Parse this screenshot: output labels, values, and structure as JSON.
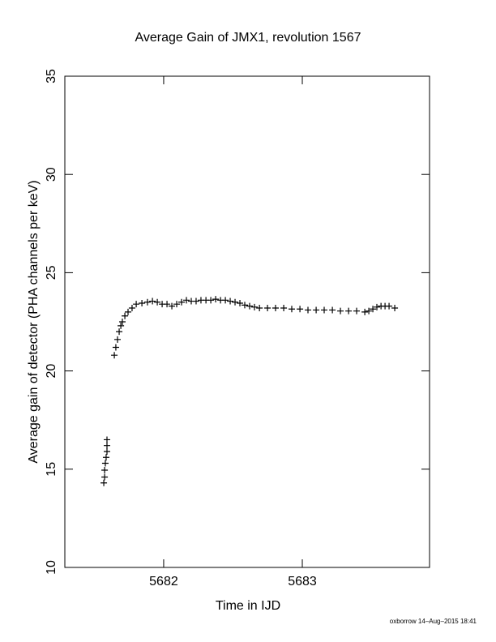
{
  "chart_data": {
    "type": "scatter",
    "title": "Average Gain of JMX1, revolution 1567",
    "x_label": "Time in IJD",
    "y_label": "Average gain of detector (PHA channels per keV)",
    "footer": "oxborrow 14–Aug–2015 18:41",
    "xlim": [
      5681.287,
      5683.918
    ],
    "ylim": [
      10,
      35
    ],
    "xticks": [
      5682,
      5683
    ],
    "yticks": [
      10,
      15,
      20,
      25,
      30,
      35
    ],
    "color": "#000000",
    "marker": "+",
    "x": [
      5681.568,
      5681.574,
      5681.574,
      5681.579,
      5681.585,
      5681.591,
      5681.591,
      5681.591,
      5681.644,
      5681.655,
      5681.667,
      5681.679,
      5681.691,
      5681.702,
      5681.72,
      5681.743,
      5681.772,
      5681.802,
      5681.843,
      5681.883,
      5681.919,
      5681.954,
      5681.989,
      5682.024,
      5682.059,
      5682.094,
      5682.129,
      5682.164,
      5682.199,
      5682.234,
      5682.269,
      5682.305,
      5682.34,
      5682.375,
      5682.41,
      5682.445,
      5682.48,
      5682.515,
      5682.55,
      5682.585,
      5682.62,
      5682.655,
      5682.691,
      5682.749,
      5682.807,
      5682.866,
      5682.924,
      5682.983,
      5683.041,
      5683.1,
      5683.158,
      5683.217,
      5683.275,
      5683.334,
      5683.392,
      5683.451,
      5683.48,
      5683.509,
      5683.538,
      5683.568,
      5683.597,
      5683.626,
      5683.667
    ],
    "values": [
      14.3,
      14.6,
      14.95,
      15.3,
      15.6,
      15.9,
      16.2,
      16.5,
      20.8,
      21.2,
      21.6,
      22.0,
      22.3,
      22.5,
      22.8,
      23.0,
      23.2,
      23.4,
      23.45,
      23.5,
      23.55,
      23.5,
      23.4,
      23.4,
      23.3,
      23.4,
      23.5,
      23.6,
      23.55,
      23.55,
      23.6,
      23.6,
      23.6,
      23.65,
      23.6,
      23.6,
      23.55,
      23.5,
      23.45,
      23.35,
      23.3,
      23.25,
      23.2,
      23.2,
      23.2,
      23.2,
      23.15,
      23.15,
      23.1,
      23.1,
      23.1,
      23.1,
      23.05,
      23.05,
      23.05,
      23.0,
      23.05,
      23.15,
      23.25,
      23.3,
      23.3,
      23.3,
      23.2
    ]
  }
}
